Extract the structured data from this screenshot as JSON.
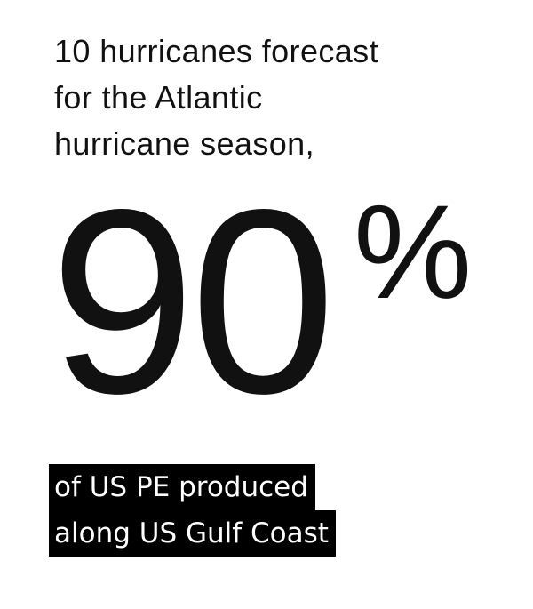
{
  "headline": {
    "line1": "10 hurricanes forecast",
    "line2": "for the Atlantic",
    "line3": "hurricane season,"
  },
  "stat": {
    "value": "90",
    "unit": "%"
  },
  "caption": {
    "line1": "of US PE produced",
    "line2": "along US Gulf Coast"
  },
  "colors": {
    "text": "#111111",
    "caption_bg": "#000000",
    "caption_text": "#ffffff",
    "background": "#ffffff"
  }
}
